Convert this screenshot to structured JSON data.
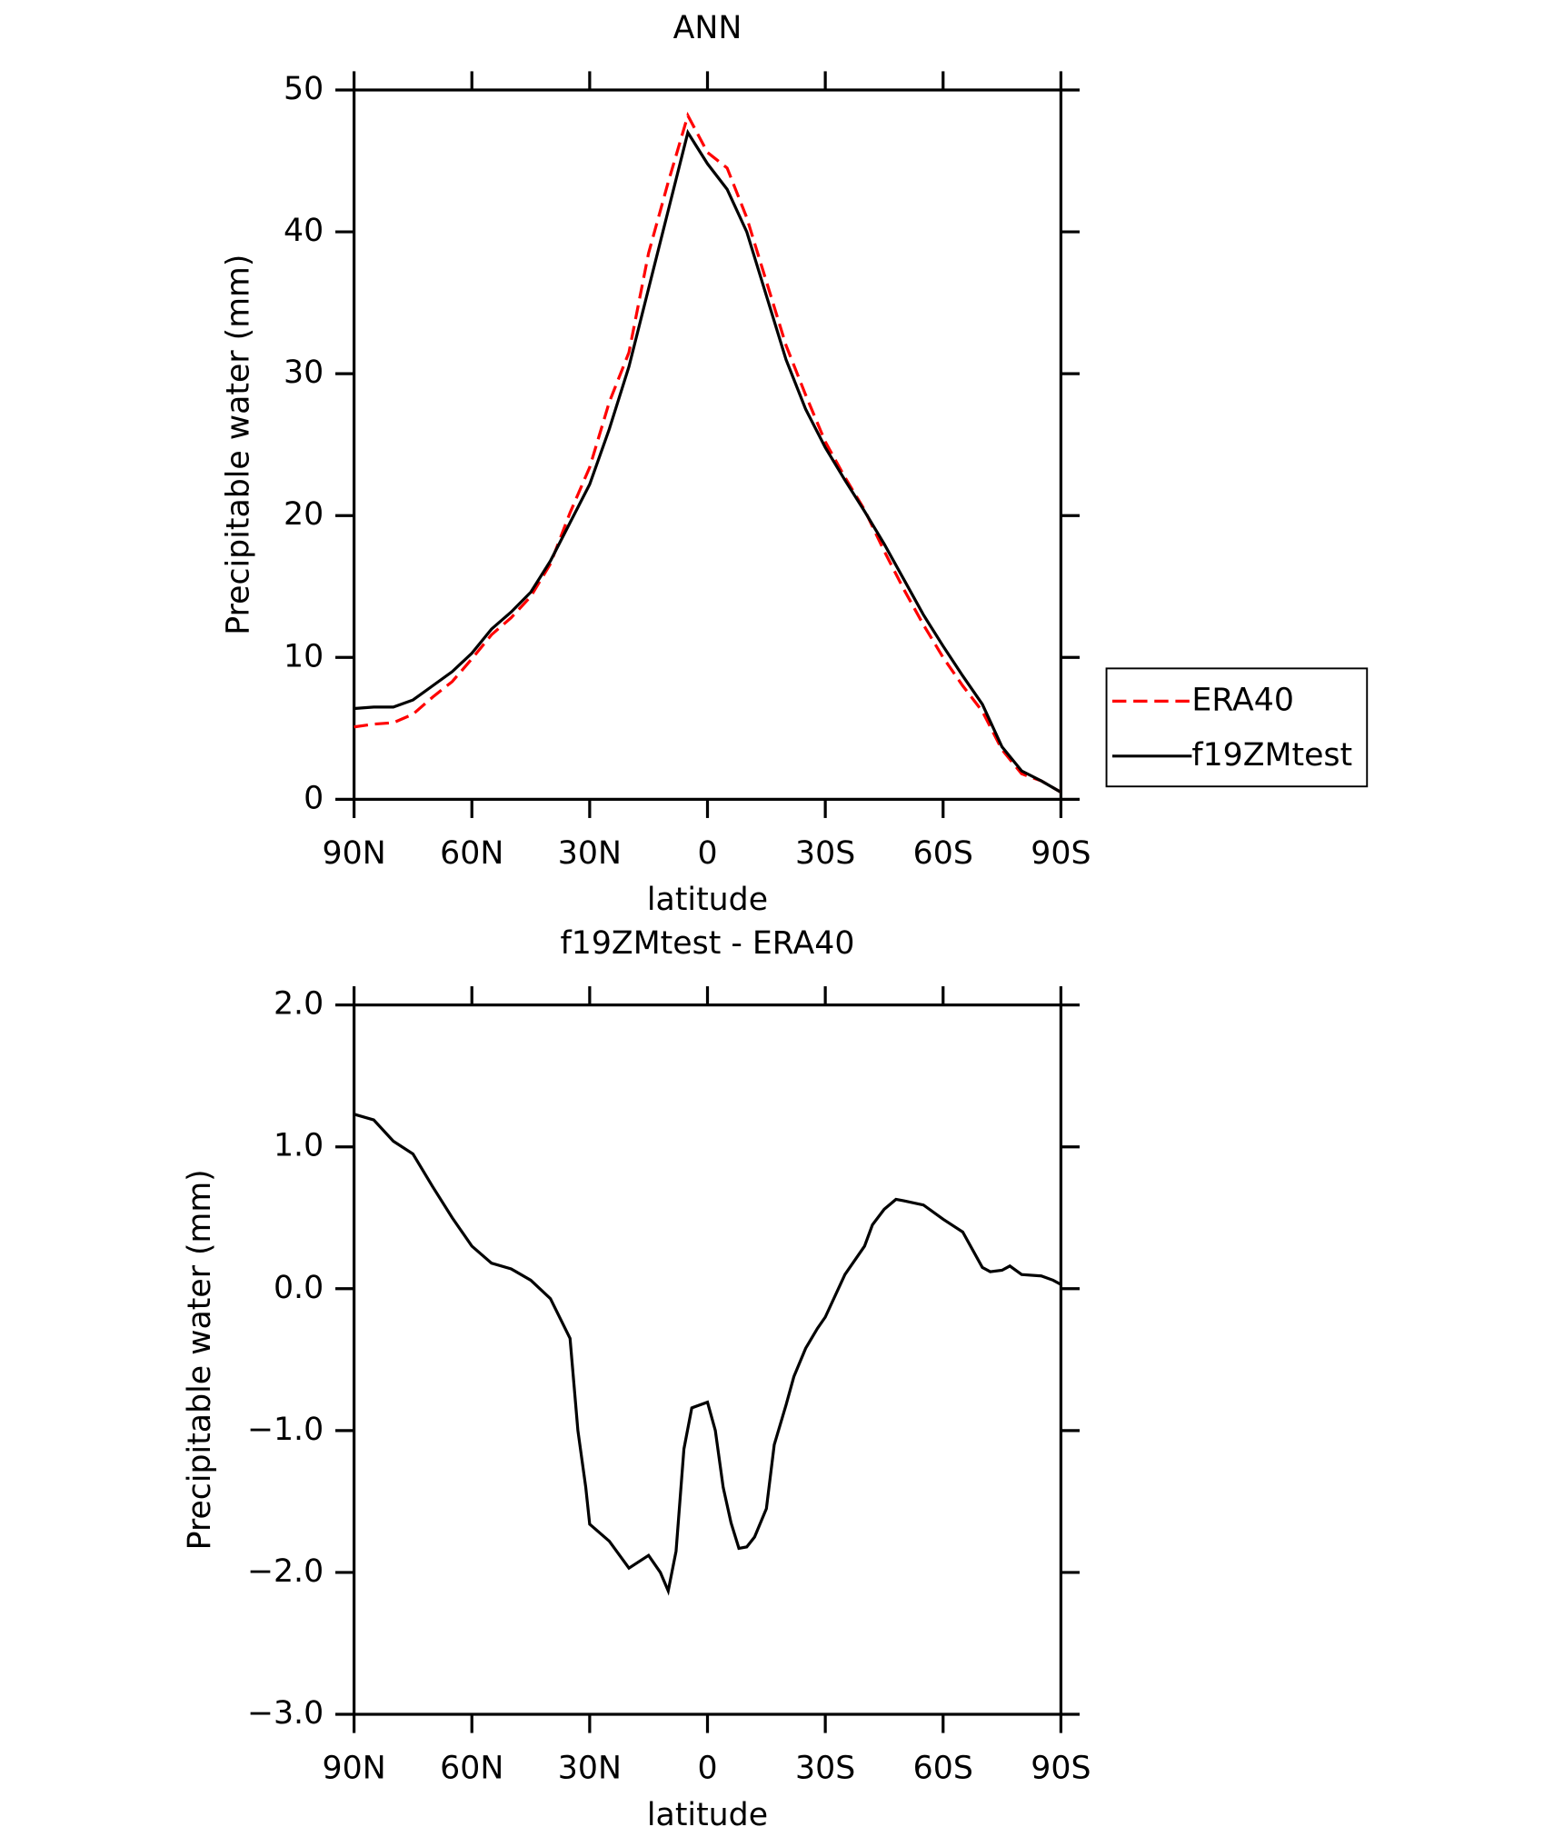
{
  "chart_data": [
    {
      "type": "line",
      "title": "ANN",
      "xlabel": "latitude",
      "ylabel": "Precipitable water (mm)",
      "x": [
        90,
        85,
        80,
        75,
        70,
        65,
        60,
        55,
        50,
        45,
        40,
        35,
        30,
        25,
        20,
        15,
        10,
        5,
        0,
        -5,
        -10,
        -15,
        -20,
        -25,
        -30,
        -35,
        -40,
        -45,
        -50,
        -55,
        -60,
        -65,
        -70,
        -75,
        -80,
        -85,
        -90
      ],
      "series": [
        {
          "name": "ERA40",
          "color": "#ff0000",
          "linestyle": "dashed",
          "values": [
            5.1,
            5.3,
            5.4,
            6.0,
            7.2,
            8.3,
            9.9,
            11.6,
            12.8,
            14.3,
            16.6,
            20.2,
            23.4,
            28.0,
            31.5,
            38.5,
            43.5,
            48.2,
            45.6,
            44.5,
            41.0,
            36.5,
            32.0,
            28.5,
            25.2,
            22.7,
            20.4,
            17.5,
            14.8,
            12.3,
            10.0,
            8.0,
            6.2,
            3.5,
            1.8,
            1.3,
            0.5
          ]
        },
        {
          "name": "f19ZMtest",
          "color": "#000000",
          "linestyle": "solid",
          "values": [
            6.4,
            6.5,
            6.5,
            7.0,
            8.0,
            9.0,
            10.3,
            12.0,
            13.2,
            14.6,
            16.8,
            19.5,
            22.2,
            26.1,
            30.5,
            36.0,
            41.5,
            47.0,
            44.8,
            43.0,
            40.0,
            35.5,
            31.0,
            27.5,
            24.8,
            22.5,
            20.3,
            18.0,
            15.5,
            13.0,
            10.8,
            8.7,
            6.7,
            3.7,
            2.0,
            1.3,
            0.5
          ]
        }
      ],
      "xlim": [
        90,
        -90
      ],
      "xticks": [
        {
          "value": 90,
          "label": "90N"
        },
        {
          "value": 60,
          "label": "60N"
        },
        {
          "value": 30,
          "label": "30N"
        },
        0,
        {
          "value": -30,
          "label": "30S"
        },
        {
          "value": -60,
          "label": "60S"
        },
        {
          "value": -90,
          "label": "90S"
        }
      ],
      "ylim": [
        0,
        50
      ],
      "yticks": [
        0,
        10,
        20,
        30,
        40,
        50
      ],
      "legend": "right"
    },
    {
      "type": "line",
      "title": "f19ZMtest - ERA40",
      "xlabel": "latitude",
      "ylabel": "Precipitable water (mm)",
      "x": [
        90,
        85,
        80,
        75,
        70,
        65,
        60,
        55,
        50,
        45,
        40,
        35,
        33,
        31,
        30,
        25,
        20,
        15,
        12,
        10,
        8,
        6,
        4,
        0,
        -2,
        -4,
        -6,
        -8,
        -10,
        -12,
        -15,
        -17,
        -20,
        -22,
        -25,
        -28,
        -30,
        -35,
        -40,
        -42,
        -45,
        -48,
        -50,
        -55,
        -60,
        -65,
        -70,
        -72,
        -75,
        -77,
        -80,
        -85,
        -88,
        -90
      ],
      "series": [
        {
          "name": "f19ZMtest - ERA40",
          "color": "#000000",
          "linestyle": "solid",
          "values": [
            1.23,
            1.19,
            1.04,
            0.95,
            0.72,
            0.5,
            0.3,
            0.18,
            0.14,
            0.06,
            -0.07,
            -0.35,
            -1.0,
            -1.4,
            -1.66,
            -1.78,
            -1.97,
            -1.88,
            -2.0,
            -2.13,
            -1.85,
            -1.13,
            -0.84,
            -0.8,
            -1.0,
            -1.4,
            -1.65,
            -1.83,
            -1.82,
            -1.75,
            -1.55,
            -1.1,
            -0.82,
            -0.62,
            -0.42,
            -0.28,
            -0.2,
            0.1,
            0.3,
            0.45,
            0.56,
            0.63,
            0.62,
            0.59,
            0.49,
            0.4,
            0.15,
            0.12,
            0.13,
            0.16,
            0.1,
            0.09,
            0.06,
            0.03
          ]
        }
      ],
      "xlim": [
        90,
        -90
      ],
      "xticks": [
        {
          "value": 90,
          "label": "90N"
        },
        {
          "value": 60,
          "label": "60N"
        },
        {
          "value": 30,
          "label": "30N"
        },
        0,
        {
          "value": -30,
          "label": "30S"
        },
        {
          "value": -60,
          "label": "60S"
        },
        {
          "value": -90,
          "label": "90S"
        }
      ],
      "ylim": [
        -3,
        2
      ],
      "yticks": [
        {
          "value": -3,
          "label": "−3.0"
        },
        {
          "value": -2,
          "label": "−2.0"
        },
        {
          "value": -1,
          "label": "−1.0"
        },
        {
          "value": 0,
          "label": "0.0"
        },
        {
          "value": 1,
          "label": "1.0"
        },
        {
          "value": 2,
          "label": "2.0"
        }
      ]
    }
  ]
}
